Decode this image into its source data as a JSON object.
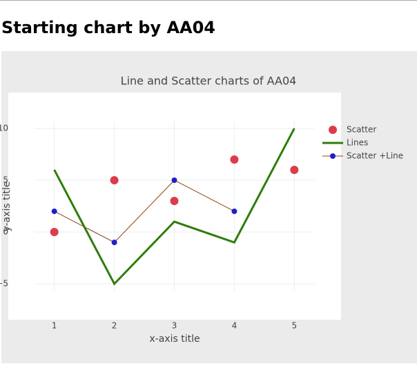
{
  "header": {
    "title": "Starting chart by AA04"
  },
  "chart_data": {
    "type": "line",
    "title": "Line and Scatter charts of AA04",
    "x_label": "x-axis title",
    "y_label": "y-axis title",
    "xlim": [
      0.67,
      5.33
    ],
    "ylim": [
      -5.8,
      10.73
    ],
    "xticks": [
      1,
      2,
      3,
      4,
      5
    ],
    "yticks": [
      {
        "value": -5,
        "label": "−5"
      },
      0,
      5,
      10
    ],
    "grid": true,
    "legend": "right",
    "series": [
      {
        "name": "Scatter",
        "mode": "markers",
        "color": "#dc3c4c",
        "x": [
          1,
          2,
          3,
          4,
          5
        ],
        "values": [
          0,
          5,
          3,
          7,
          6
        ]
      },
      {
        "name": "Lines",
        "mode": "lines",
        "color": "#2e7d0a",
        "x": [
          1,
          2,
          3,
          4,
          5
        ],
        "values": [
          6,
          -5,
          1,
          -1,
          10
        ]
      },
      {
        "name": "Scatter +Line",
        "mode": "lines+markers",
        "color": "#1f1fc8",
        "line_color": "#8b4513",
        "x": [
          1,
          2,
          3,
          4
        ],
        "values": [
          2,
          -1,
          5,
          2
        ]
      }
    ]
  }
}
